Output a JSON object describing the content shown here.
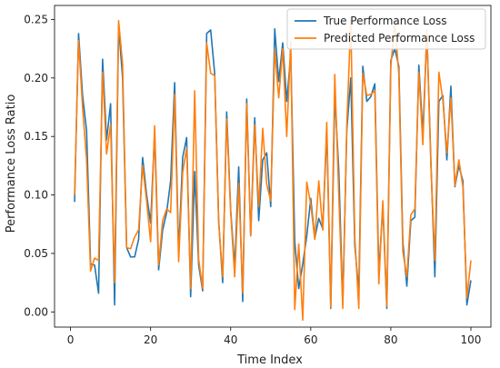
{
  "chart_data": {
    "type": "line",
    "title": "",
    "xlabel": "Time Index",
    "ylabel": "Performance Loss Ratio",
    "xlim": [
      -4,
      105
    ],
    "ylim": [
      -0.013,
      0.262
    ],
    "xticks": [
      0,
      20,
      40,
      60,
      80,
      100
    ],
    "yticks": [
      0.0,
      0.05,
      0.1,
      0.15,
      0.2,
      0.25
    ],
    "ytick_labels": [
      "0.00",
      "0.05",
      "0.10",
      "0.15",
      "0.20",
      "0.25"
    ],
    "grid": false,
    "legend_position": "top-right",
    "x": [
      1,
      2,
      3,
      4,
      5,
      6,
      7,
      8,
      9,
      10,
      11,
      12,
      13,
      14,
      15,
      16,
      17,
      18,
      19,
      20,
      21,
      22,
      23,
      24,
      25,
      26,
      27,
      28,
      29,
      30,
      31,
      32,
      33,
      34,
      35,
      36,
      37,
      38,
      39,
      40,
      41,
      42,
      43,
      44,
      45,
      46,
      47,
      48,
      49,
      50,
      51,
      52,
      53,
      54,
      55,
      56,
      57,
      58,
      59,
      60,
      61,
      62,
      63,
      64,
      65,
      66,
      67,
      68,
      69,
      70,
      71,
      72,
      73,
      74,
      75,
      76,
      77,
      78,
      79,
      80,
      81,
      82,
      83,
      84,
      85,
      86,
      87,
      88,
      89,
      90,
      91,
      92,
      93,
      94,
      95,
      96,
      97,
      98,
      99,
      100
    ],
    "series": [
      {
        "name": "True Performance Loss",
        "color": "#1f77b4",
        "values": [
          0.094,
          0.238,
          0.185,
          0.155,
          0.041,
          0.04,
          0.016,
          0.216,
          0.147,
          0.178,
          0.006,
          0.245,
          0.2,
          0.055,
          0.047,
          0.047,
          0.062,
          0.132,
          0.1,
          0.076,
          0.153,
          0.036,
          0.07,
          0.085,
          0.112,
          0.196,
          0.05,
          0.132,
          0.149,
          0.013,
          0.12,
          0.04,
          0.018,
          0.238,
          0.241,
          0.204,
          0.078,
          0.025,
          0.171,
          0.087,
          0.038,
          0.124,
          0.009,
          0.182,
          0.065,
          0.166,
          0.078,
          0.13,
          0.136,
          0.09,
          0.242,
          0.197,
          0.23,
          0.18,
          0.22,
          0.06,
          0.02,
          0.041,
          0.065,
          0.097,
          0.063,
          0.08,
          0.071,
          0.155,
          0.003,
          0.186,
          0.121,
          0.007,
          0.155,
          0.2,
          0.057,
          0.017,
          0.21,
          0.18,
          0.184,
          0.195,
          0.033,
          0.091,
          0.003,
          0.215,
          0.225,
          0.21,
          0.06,
          0.022,
          0.078,
          0.081,
          0.211,
          0.152,
          0.239,
          0.13,
          0.03,
          0.18,
          0.185,
          0.13,
          0.193,
          0.107,
          0.125,
          0.112,
          0.006,
          0.027
        ]
      },
      {
        "name": "Predicted Performance Loss",
        "color": "#ff7f0e",
        "values": [
          0.1,
          0.232,
          0.175,
          0.13,
          0.035,
          0.046,
          0.044,
          0.205,
          0.135,
          0.16,
          0.025,
          0.249,
          0.212,
          0.055,
          0.054,
          0.064,
          0.07,
          0.125,
          0.095,
          0.06,
          0.159,
          0.04,
          0.078,
          0.088,
          0.085,
          0.186,
          0.043,
          0.119,
          0.14,
          0.02,
          0.189,
          0.045,
          0.02,
          0.23,
          0.204,
          0.202,
          0.076,
          0.03,
          0.165,
          0.085,
          0.03,
          0.11,
          0.016,
          0.178,
          0.065,
          0.16,
          0.09,
          0.157,
          0.109,
          0.095,
          0.224,
          0.183,
          0.225,
          0.15,
          0.231,
          0.002,
          0.058,
          -0.007,
          0.111,
          0.092,
          0.062,
          0.112,
          0.07,
          0.162,
          0.004,
          0.203,
          0.1,
          0.003,
          0.16,
          0.249,
          0.064,
          0.003,
          0.204,
          0.185,
          0.186,
          0.189,
          0.024,
          0.095,
          0.005,
          0.21,
          0.247,
          0.203,
          0.052,
          0.03,
          0.083,
          0.088,
          0.205,
          0.143,
          0.241,
          0.126,
          0.044,
          0.205,
          0.181,
          0.136,
          0.183,
          0.108,
          0.13,
          0.107,
          0.012,
          0.044
        ]
      }
    ]
  }
}
